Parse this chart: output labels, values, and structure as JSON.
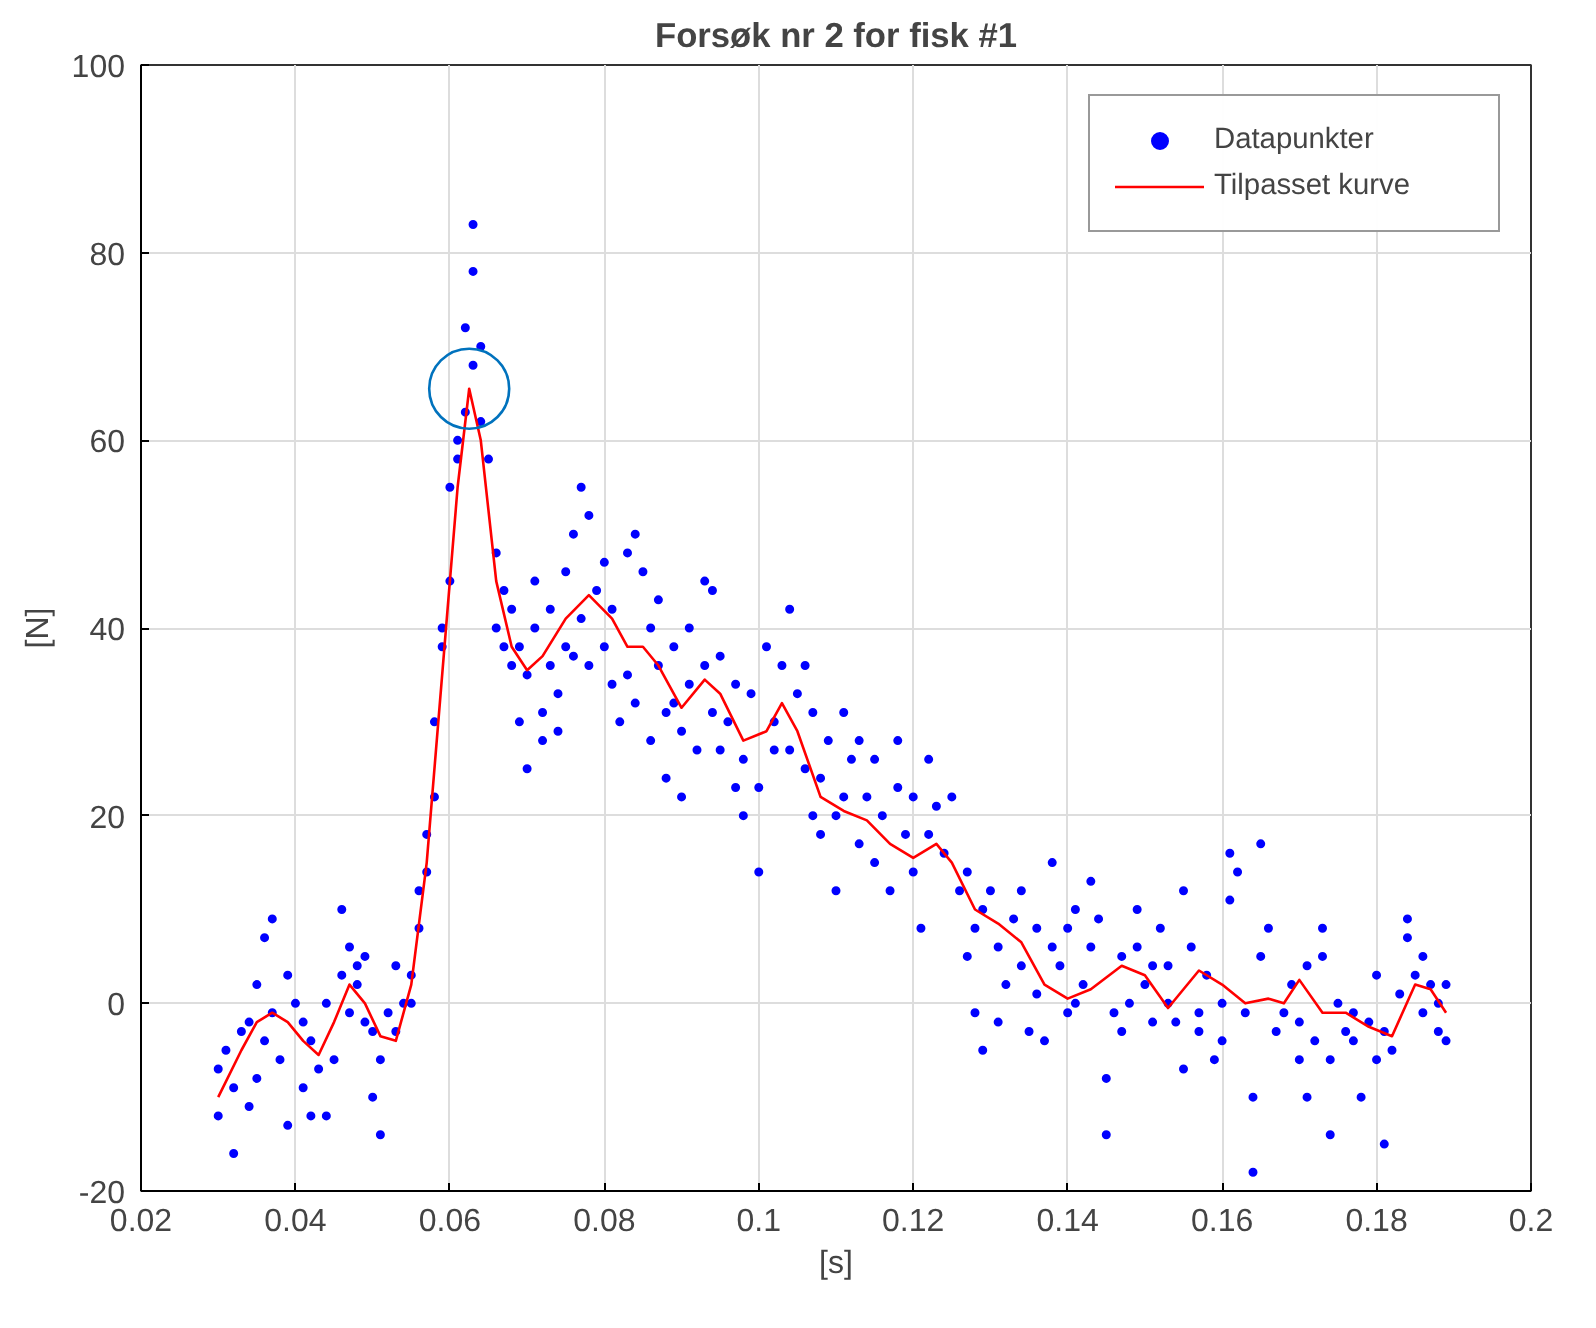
{
  "chart_data": {
    "type": "scatter",
    "title": "Forsøk nr 2 for fisk #1",
    "xlabel": "[s]",
    "ylabel": "[N]",
    "xlim": [
      0.02,
      0.2
    ],
    "ylim": [
      -20,
      100
    ],
    "xticks": [
      0.02,
      0.04,
      0.06,
      0.08,
      0.1,
      0.12,
      0.14,
      0.16,
      0.18,
      0.2
    ],
    "yticks": [
      -20,
      0,
      20,
      40,
      60,
      80,
      100
    ],
    "grid": true,
    "legend": "top right",
    "series": [
      {
        "name": "Datapunkter",
        "marker": "circle",
        "color": "#0000ff",
        "x": [
          0.03,
          0.03,
          0.031,
          0.032,
          0.032,
          0.033,
          0.034,
          0.034,
          0.035,
          0.035,
          0.036,
          0.036,
          0.037,
          0.037,
          0.038,
          0.039,
          0.039,
          0.04,
          0.041,
          0.041,
          0.042,
          0.042,
          0.043,
          0.044,
          0.044,
          0.045,
          0.046,
          0.046,
          0.047,
          0.047,
          0.048,
          0.048,
          0.049,
          0.049,
          0.05,
          0.05,
          0.051,
          0.051,
          0.052,
          0.053,
          0.053,
          0.054,
          0.055,
          0.055,
          0.056,
          0.056,
          0.057,
          0.057,
          0.058,
          0.058,
          0.059,
          0.059,
          0.06,
          0.06,
          0.061,
          0.061,
          0.062,
          0.062,
          0.063,
          0.063,
          0.063,
          0.064,
          0.064,
          0.065,
          0.066,
          0.066,
          0.067,
          0.067,
          0.068,
          0.068,
          0.069,
          0.069,
          0.07,
          0.07,
          0.071,
          0.071,
          0.072,
          0.072,
          0.073,
          0.073,
          0.074,
          0.074,
          0.075,
          0.075,
          0.076,
          0.076,
          0.077,
          0.077,
          0.078,
          0.078,
          0.079,
          0.08,
          0.08,
          0.081,
          0.081,
          0.082,
          0.083,
          0.083,
          0.084,
          0.084,
          0.085,
          0.086,
          0.086,
          0.087,
          0.087,
          0.088,
          0.088,
          0.089,
          0.089,
          0.09,
          0.09,
          0.091,
          0.091,
          0.092,
          0.093,
          0.093,
          0.094,
          0.094,
          0.095,
          0.095,
          0.096,
          0.097,
          0.097,
          0.098,
          0.098,
          0.099,
          0.1,
          0.1,
          0.101,
          0.102,
          0.102,
          0.103,
          0.104,
          0.104,
          0.105,
          0.106,
          0.106,
          0.107,
          0.107,
          0.108,
          0.108,
          0.109,
          0.11,
          0.11,
          0.111,
          0.111,
          0.112,
          0.113,
          0.113,
          0.114,
          0.115,
          0.115,
          0.116,
          0.117,
          0.118,
          0.118,
          0.119,
          0.12,
          0.12,
          0.121,
          0.122,
          0.122,
          0.123,
          0.124,
          0.125,
          0.126,
          0.127,
          0.127,
          0.128,
          0.128,
          0.129,
          0.129,
          0.13,
          0.131,
          0.131,
          0.132,
          0.133,
          0.134,
          0.134,
          0.135,
          0.136,
          0.136,
          0.137,
          0.138,
          0.138,
          0.139,
          0.14,
          0.14,
          0.141,
          0.141,
          0.142,
          0.143,
          0.143,
          0.144,
          0.145,
          0.145,
          0.146,
          0.147,
          0.147,
          0.148,
          0.149,
          0.149,
          0.15,
          0.151,
          0.151,
          0.152,
          0.153,
          0.153,
          0.154,
          0.155,
          0.155,
          0.156,
          0.157,
          0.157,
          0.158,
          0.159,
          0.16,
          0.16,
          0.161,
          0.161,
          0.162,
          0.163,
          0.164,
          0.164,
          0.165,
          0.165,
          0.166,
          0.167,
          0.168,
          0.169,
          0.17,
          0.17,
          0.171,
          0.171,
          0.172,
          0.173,
          0.173,
          0.174,
          0.174,
          0.175,
          0.176,
          0.177,
          0.177,
          0.178,
          0.179,
          0.18,
          0.18,
          0.181,
          0.181,
          0.182,
          0.183,
          0.184,
          0.184,
          0.185,
          0.186,
          0.186,
          0.187,
          0.188,
          0.188,
          0.189,
          0.189
        ],
        "values": [
          -7,
          -12,
          -5,
          -16,
          -9,
          -3,
          -2,
          -11,
          2,
          -8,
          -4,
          7,
          9,
          -1,
          -6,
          3,
          -13,
          0,
          -2,
          -9,
          -12,
          -4,
          -7,
          -12,
          0,
          -6,
          10,
          3,
          6,
          -1,
          4,
          2,
          5,
          -2,
          -3,
          -10,
          -6,
          -14,
          -1,
          4,
          -3,
          0,
          3,
          0,
          8,
          12,
          18,
          14,
          22,
          30,
          38,
          40,
          45,
          55,
          60,
          58,
          63,
          72,
          83,
          78,
          68,
          70,
          62,
          58,
          48,
          40,
          44,
          38,
          36,
          42,
          30,
          38,
          25,
          35,
          40,
          45,
          31,
          28,
          36,
          42,
          29,
          33,
          46,
          38,
          50,
          37,
          55,
          41,
          52,
          36,
          44,
          47,
          38,
          34,
          42,
          30,
          35,
          48,
          50,
          32,
          46,
          40,
          28,
          36,
          43,
          31,
          24,
          32,
          38,
          29,
          22,
          40,
          34,
          27,
          45,
          36,
          31,
          44,
          27,
          37,
          30,
          23,
          34,
          26,
          20,
          33,
          23,
          14,
          38,
          30,
          27,
          36,
          27,
          42,
          33,
          25,
          36,
          20,
          31,
          24,
          18,
          28,
          20,
          12,
          31,
          22,
          26,
          17,
          28,
          22,
          15,
          26,
          20,
          12,
          23,
          28,
          18,
          14,
          22,
          8,
          26,
          18,
          21,
          16,
          22,
          12,
          5,
          14,
          -1,
          8,
          -5,
          10,
          12,
          6,
          -2,
          2,
          9,
          12,
          4,
          -3,
          1,
          8,
          -4,
          6,
          15,
          4,
          -1,
          8,
          10,
          0,
          2,
          13,
          6,
          9,
          -8,
          -14,
          -1,
          5,
          -3,
          0,
          6,
          10,
          2,
          4,
          -2,
          8,
          0,
          4,
          -2,
          -7,
          12,
          6,
          -1,
          -3,
          3,
          -6,
          0,
          -4,
          11,
          16,
          14,
          -1,
          -18,
          -10,
          5,
          17,
          8,
          -3,
          -1,
          2,
          -2,
          -6,
          -10,
          4,
          -4,
          5,
          8,
          -14,
          -6,
          0,
          -3,
          -1,
          -4,
          -10,
          -2,
          3,
          -6,
          -15,
          -3,
          -5,
          1,
          7,
          9,
          3,
          5,
          -1,
          2,
          0,
          -3,
          2,
          -4
        ]
      },
      {
        "name": "Tilpasset kurve",
        "type": "line",
        "marker": "none",
        "line_style": "solid",
        "color": "#ff0000",
        "x": [
          0.03,
          0.033,
          0.035,
          0.037,
          0.039,
          0.041,
          0.043,
          0.045,
          0.047,
          0.049,
          0.051,
          0.053,
          0.055,
          0.057,
          0.059,
          0.061,
          0.0625,
          0.064,
          0.066,
          0.068,
          0.07,
          0.072,
          0.075,
          0.078,
          0.081,
          0.083,
          0.085,
          0.087,
          0.09,
          0.093,
          0.095,
          0.098,
          0.101,
          0.103,
          0.105,
          0.108,
          0.111,
          0.114,
          0.117,
          0.12,
          0.123,
          0.125,
          0.128,
          0.131,
          0.134,
          0.137,
          0.14,
          0.143,
          0.147,
          0.15,
          0.153,
          0.157,
          0.16,
          0.163,
          0.166,
          0.168,
          0.17,
          0.173,
          0.176,
          0.179,
          0.182,
          0.185,
          0.187,
          0.189
        ],
        "values": [
          -10,
          -5,
          -2,
          -1,
          -2,
          -4,
          -5.5,
          -2,
          2,
          0,
          -3.5,
          -4,
          2,
          15,
          35,
          55,
          65.5,
          60,
          45,
          38,
          35.5,
          37,
          41,
          43.5,
          41,
          38,
          38,
          36,
          31.5,
          34.5,
          33,
          28,
          29,
          32,
          29,
          22,
          20.5,
          19.5,
          17,
          15.5,
          17,
          15,
          10,
          8.5,
          6.5,
          2,
          0.5,
          1.5,
          4,
          3,
          -0.5,
          3.5,
          2,
          0,
          0.5,
          0,
          2.5,
          -1,
          -1,
          -2.5,
          -3.5,
          2,
          1.5,
          -1
        ]
      },
      {
        "marker": "circle_open",
        "color": "#0072bd",
        "x": [
          0.0625
        ],
        "values": [
          65.5
        ]
      }
    ]
  }
}
